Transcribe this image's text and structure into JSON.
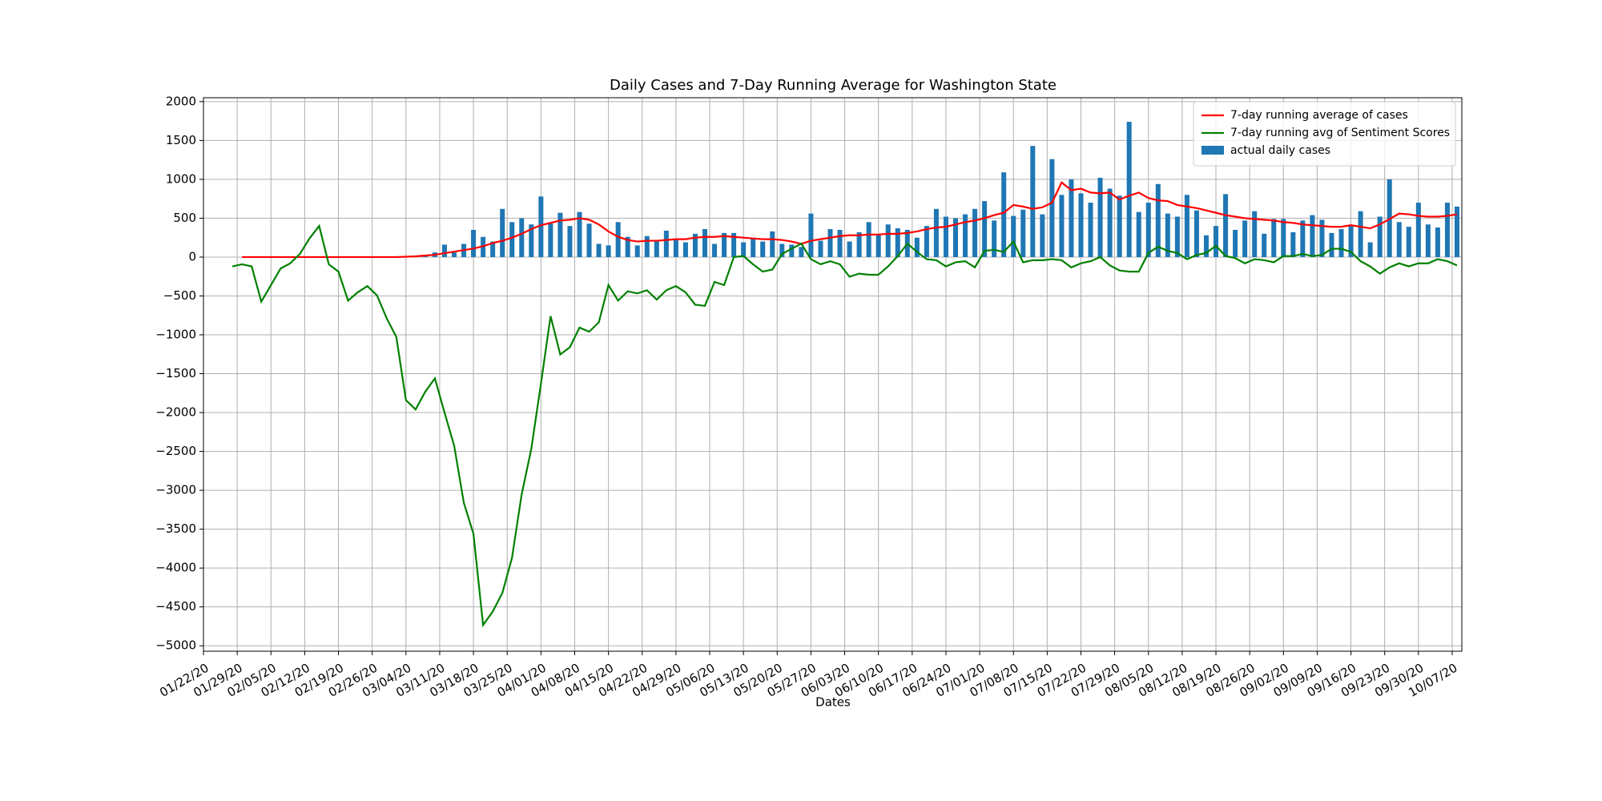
{
  "chart_data": {
    "type": "combo",
    "title": "Daily Cases and 7-Day Running Average for Washington State",
    "x_label": "Dates",
    "x": [
      "01/28/20",
      "01/30/20",
      "02/01/20",
      "02/03/20",
      "02/05/20",
      "02/07/20",
      "02/09/20",
      "02/11/20",
      "02/13/20",
      "02/15/20",
      "02/17/20",
      "02/19/20",
      "02/21/20",
      "02/23/20",
      "02/25/20",
      "02/27/20",
      "02/29/20",
      "03/02/20",
      "03/04/20",
      "03/06/20",
      "03/08/20",
      "03/10/20",
      "03/12/20",
      "03/14/20",
      "03/16/20",
      "03/18/20",
      "03/20/20",
      "03/22/20",
      "03/24/20",
      "03/26/20",
      "03/28/20",
      "03/30/20",
      "04/01/20",
      "04/03/20",
      "04/05/20",
      "04/07/20",
      "04/09/20",
      "04/11/20",
      "04/13/20",
      "04/15/20",
      "04/17/20",
      "04/19/20",
      "04/21/20",
      "04/23/20",
      "04/25/20",
      "04/27/20",
      "04/29/20",
      "05/01/20",
      "05/03/20",
      "05/05/20",
      "05/07/20",
      "05/09/20",
      "05/11/20",
      "05/13/20",
      "05/15/20",
      "05/17/20",
      "05/19/20",
      "05/21/20",
      "05/23/20",
      "05/25/20",
      "05/27/20",
      "05/29/20",
      "05/31/20",
      "06/02/20",
      "06/04/20",
      "06/06/20",
      "06/08/20",
      "06/10/20",
      "06/12/20",
      "06/14/20",
      "06/16/20",
      "06/18/20",
      "06/20/20",
      "06/22/20",
      "06/24/20",
      "06/26/20",
      "06/28/20",
      "06/30/20",
      "07/02/20",
      "07/04/20",
      "07/06/20",
      "07/08/20",
      "07/10/20",
      "07/12/20",
      "07/14/20",
      "07/16/20",
      "07/18/20",
      "07/20/20",
      "07/22/20",
      "07/24/20",
      "07/26/20",
      "07/28/20",
      "07/30/20",
      "08/01/20",
      "08/03/20",
      "08/05/20",
      "08/07/20",
      "08/09/20",
      "08/11/20",
      "08/13/20",
      "08/15/20",
      "08/17/20",
      "08/19/20",
      "08/21/20",
      "08/23/20",
      "08/25/20",
      "08/27/20",
      "08/29/20",
      "08/31/20",
      "09/02/20",
      "09/04/20",
      "09/06/20",
      "09/08/20",
      "09/10/20",
      "09/12/20",
      "09/14/20",
      "09/16/20",
      "09/18/20",
      "09/20/20",
      "09/22/20",
      "09/24/20",
      "09/26/20",
      "09/28/20",
      "09/30/20",
      "10/02/20",
      "10/04/20",
      "10/06/20",
      "10/08/20"
    ],
    "series": [
      {
        "name": "7-day running average of cases",
        "type": "line",
        "color": "red",
        "values": [
          null,
          0,
          0,
          0,
          0,
          0,
          0,
          0,
          0,
          0,
          0,
          0,
          0,
          0,
          0,
          0,
          0,
          0,
          5,
          10,
          20,
          30,
          50,
          70,
          90,
          110,
          140,
          180,
          210,
          250,
          300,
          360,
          410,
          440,
          470,
          480,
          500,
          480,
          420,
          330,
          260,
          220,
          200,
          210,
          210,
          220,
          230,
          230,
          250,
          260,
          260,
          270,
          260,
          250,
          240,
          230,
          230,
          220,
          200,
          170,
          210,
          230,
          250,
          270,
          280,
          280,
          290,
          290,
          300,
          300,
          310,
          330,
          360,
          380,
          390,
          420,
          450,
          470,
          500,
          540,
          570,
          670,
          650,
          620,
          640,
          700,
          960,
          860,
          880,
          830,
          820,
          830,
          740,
          790,
          830,
          760,
          730,
          720,
          670,
          650,
          630,
          600,
          570,
          540,
          520,
          500,
          490,
          480,
          470,
          450,
          440,
          420,
          410,
          400,
          390,
          390,
          410,
          390,
          370,
          420,
          490,
          560,
          550,
          530,
          520,
          520,
          530,
          550
        ]
      },
      {
        "name": "7-day running avg of Sentiment Scores",
        "type": "line",
        "color": "green",
        "values": [
          -120,
          -93,
          -120,
          -573,
          -360,
          -147,
          -80,
          40,
          240,
          400,
          -93,
          -187,
          -560,
          -453,
          -373,
          -493,
          -787,
          -1027,
          -1840,
          -1960,
          -1733,
          -1560,
          -2000,
          -2427,
          -3160,
          -3560,
          -4733,
          -4560,
          -4320,
          -3867,
          -3053,
          -2467,
          -1627,
          -760,
          -1253,
          -1160,
          -907,
          -960,
          -840,
          -360,
          -560,
          -440,
          -467,
          -427,
          -547,
          -427,
          -373,
          -453,
          -613,
          -627,
          -320,
          -360,
          0,
          13,
          -93,
          -187,
          -160,
          40,
          107,
          173,
          -27,
          -93,
          -53,
          -93,
          -253,
          -213,
          -227,
          -227,
          -120,
          13,
          173,
          67,
          -27,
          -40,
          -120,
          -67,
          -53,
          -133,
          80,
          93,
          67,
          200,
          -67,
          -40,
          -40,
          -27,
          -40,
          -133,
          -80,
          -53,
          0,
          -107,
          -173,
          -187,
          -187,
          53,
          133,
          80,
          53,
          -27,
          27,
          53,
          147,
          13,
          -13,
          -80,
          -27,
          -40,
          -67,
          13,
          13,
          40,
          13,
          27,
          107,
          107,
          67,
          -53,
          -120,
          -213,
          -133,
          -80,
          -120,
          -80,
          -80,
          -27,
          -53,
          -107
        ]
      },
      {
        "name": "actual daily cases",
        "type": "bar",
        "color": "#1f77b4",
        "values": [
          null,
          null,
          null,
          null,
          null,
          null,
          null,
          null,
          null,
          null,
          null,
          null,
          null,
          null,
          null,
          null,
          null,
          2,
          10,
          20,
          30,
          60,
          160,
          60,
          170,
          350,
          260,
          200,
          620,
          450,
          500,
          420,
          780,
          430,
          570,
          400,
          580,
          430,
          170,
          150,
          450,
          260,
          150,
          270,
          200,
          340,
          220,
          190,
          300,
          360,
          170,
          310,
          310,
          190,
          250,
          200,
          330,
          170,
          160,
          130,
          560,
          210,
          360,
          350,
          200,
          320,
          450,
          290,
          420,
          370,
          350,
          250,
          400,
          620,
          520,
          500,
          550,
          620,
          720,
          470,
          1090,
          530,
          610,
          1430,
          550,
          1260,
          800,
          1000,
          820,
          700,
          1020,
          880,
          790,
          1740,
          580,
          700,
          940,
          560,
          520,
          800,
          600,
          280,
          400,
          810,
          350,
          470,
          590,
          300,
          490,
          490,
          320,
          470,
          540,
          480,
          310,
          360,
          410,
          590,
          190,
          520,
          1000,
          450,
          390,
          700,
          420,
          380,
          700,
          650
        ]
      }
    ],
    "xlim": [
      "01/22/20",
      "10/09/20"
    ],
    "xticks": [
      "01/22/20",
      "01/29/20",
      "02/05/20",
      "02/12/20",
      "02/19/20",
      "02/26/20",
      "03/04/20",
      "03/11/20",
      "03/18/20",
      "03/25/20",
      "04/01/20",
      "04/08/20",
      "04/15/20",
      "04/22/20",
      "04/29/20",
      "05/06/20",
      "05/13/20",
      "05/20/20",
      "05/27/20",
      "06/03/20",
      "06/10/20",
      "06/17/20",
      "06/24/20",
      "07/01/20",
      "07/08/20",
      "07/15/20",
      "07/22/20",
      "07/29/20",
      "08/05/20",
      "08/12/20",
      "08/19/20",
      "08/26/20",
      "09/02/20",
      "09/09/20",
      "09/16/20",
      "09/23/20",
      "09/30/20",
      "10/07/20"
    ],
    "ylim": [
      -5070,
      2050
    ],
    "yticks": [
      2000,
      1500,
      1000,
      500,
      0,
      {
        "value": -500,
        "label": "−500"
      },
      {
        "value": -1000,
        "label": "−1000"
      },
      {
        "value": -1500,
        "label": "−1500"
      },
      {
        "value": -2000,
        "label": "−2000"
      },
      {
        "value": -2500,
        "label": "−2500"
      },
      {
        "value": -3000,
        "label": "−3000"
      },
      {
        "value": -3500,
        "label": "−3500"
      },
      {
        "value": -4000,
        "label": "−4000"
      },
      {
        "value": -4500,
        "label": "−4500"
      },
      {
        "value": -5000,
        "label": "−5000"
      }
    ],
    "grid": true,
    "legend": "upper right"
  }
}
